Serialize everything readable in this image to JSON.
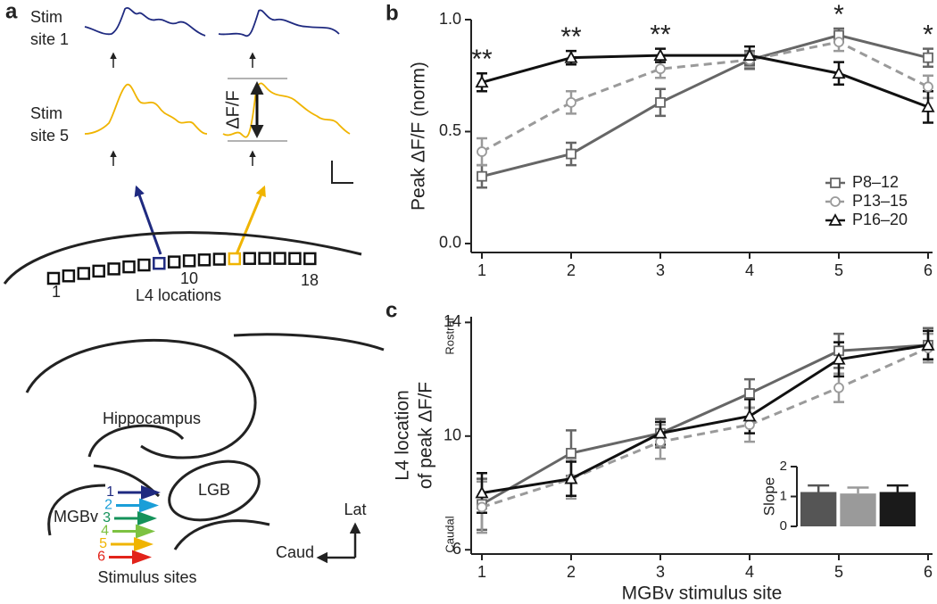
{
  "panel_a": {
    "label": "a",
    "stim_site_1": [
      "Stim",
      "site 1"
    ],
    "stim_site_5": [
      "Stim",
      "site 5"
    ],
    "scale_label": "ΔF/F",
    "l4_numbers": [
      "1",
      "10",
      "18"
    ],
    "l4_caption": "L4 locations",
    "hippocampus": "Hippocampus",
    "lgb": "LGB",
    "mgbv": "MGBv",
    "site_numbers": [
      "1",
      "2",
      "3",
      "4",
      "5",
      "6"
    ],
    "stimulus_sites": "Stimulus sites",
    "compass": {
      "lat": "Lat",
      "caud": "Caud"
    }
  },
  "chart_data": [
    {
      "type": "line",
      "panel_label": "b",
      "ylabel": "Peak ΔF/F (norm)",
      "x": [
        1,
        2,
        3,
        4,
        5,
        6
      ],
      "xlim": [
        0.88,
        6.05
      ],
      "xticks": [
        1,
        2,
        3,
        4,
        5,
        6
      ],
      "ylim": [
        -0.04,
        1.0
      ],
      "yticks": [
        {
          "value": 0,
          "label": "0.0"
        },
        {
          "value": 0.5,
          "label": "0.5"
        },
        {
          "value": 1,
          "label": "1.0"
        }
      ],
      "legend": "lower right",
      "series": [
        {
          "name": "P8–12",
          "color": "#666666",
          "marker": "square",
          "linestyle": "solid",
          "values": [
            0.3,
            0.4,
            0.63,
            0.82,
            0.93,
            0.83
          ],
          "errors": [
            0.05,
            0.05,
            0.06,
            0.04,
            0.03,
            0.04
          ]
        },
        {
          "name": "P13–15",
          "color": "#9a9a9a",
          "marker": "circle",
          "linestyle": "dashed",
          "values": [
            0.41,
            0.63,
            0.78,
            0.82,
            0.9,
            0.7
          ],
          "errors": [
            0.06,
            0.05,
            0.04,
            0.03,
            0.04,
            0.05
          ]
        },
        {
          "name": "P16–20",
          "color": "#111111",
          "marker": "triangle",
          "linestyle": "solid",
          "values": [
            0.72,
            0.83,
            0.84,
            0.84,
            0.76,
            0.61
          ],
          "errors": [
            0.04,
            0.03,
            0.03,
            0.04,
            0.05,
            0.07
          ]
        }
      ],
      "annotations": [
        {
          "x": 1,
          "text": "**"
        },
        {
          "x": 2,
          "text": "**"
        },
        {
          "x": 3,
          "text": "**"
        },
        {
          "x": 5,
          "text": "*"
        },
        {
          "x": 6,
          "text": "*"
        }
      ]
    },
    {
      "type": "line",
      "panel_label": "c",
      "ylabel": [
        "L4 location",
        "of peak ΔF/F"
      ],
      "y_direction_labels": [
        "Rostral",
        "Caudal"
      ],
      "xlabel": "MGBv stimulus site",
      "x": [
        1,
        2,
        3,
        4,
        5,
        6
      ],
      "xlim": [
        0.88,
        6.05
      ],
      "xticks": [
        1,
        2,
        3,
        4,
        5,
        6
      ],
      "ylim": [
        5.85,
        14.2
      ],
      "yticks": [
        6,
        10,
        14
      ],
      "series": [
        {
          "color": "#666666",
          "marker": "square",
          "linestyle": "solid",
          "values": [
            7.6,
            9.4,
            10.1,
            11.5,
            13.0,
            13.2
          ],
          "errors": [
            0.9,
            0.8,
            0.5,
            0.5,
            0.6,
            0.6
          ]
        },
        {
          "color": "#9a9a9a",
          "marker": "circle",
          "linestyle": "dashed",
          "values": [
            7.5,
            8.5,
            9.8,
            10.4,
            11.7,
            13.1
          ],
          "errors": [
            0.9,
            0.7,
            0.6,
            0.6,
            0.5,
            0.5
          ]
        },
        {
          "color": "#111111",
          "marker": "triangle",
          "linestyle": "solid",
          "values": [
            8.0,
            8.5,
            10.1,
            10.7,
            12.7,
            13.2
          ],
          "errors": [
            0.7,
            0.6,
            0.4,
            0.6,
            0.6,
            0.5
          ]
        }
      ]
    },
    {
      "type": "bar",
      "ylabel": "Slope",
      "categories": [
        null,
        null,
        null
      ],
      "values": [
        1.15,
        1.1,
        1.15
      ],
      "errors": [
        0.22,
        0.2,
        0.22
      ],
      "colors": [
        "#555555",
        "#9a9a9a",
        "#1a1a1a"
      ],
      "ylim": [
        0,
        2
      ],
      "yticks": [
        0,
        1,
        2
      ]
    }
  ]
}
